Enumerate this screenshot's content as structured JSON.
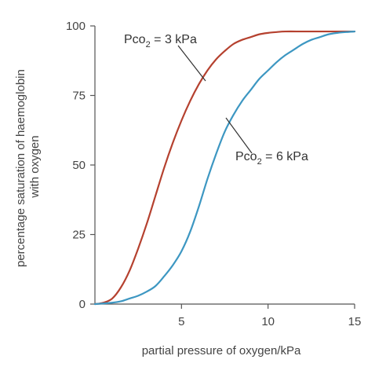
{
  "chart_data": {
    "type": "line",
    "title": "",
    "xlabel": "partial pressure of oxygen/kPa",
    "ylabel": [
      "percentage saturation of haemoglobin",
      "with oxygen"
    ],
    "xlim": [
      0,
      15
    ],
    "ylim": [
      0,
      100
    ],
    "x_ticks": [
      5,
      10,
      15
    ],
    "x_tick_labels": [
      "5",
      "10",
      "15"
    ],
    "y_ticks": [
      0,
      25,
      50,
      75,
      100
    ],
    "y_tick_labels": [
      "0",
      "25",
      "50",
      "75",
      "100"
    ],
    "grid": false,
    "legend": "none",
    "series": [
      {
        "label_main": "Pco",
        "label_sub": "2",
        "label_rest": " = 3 kPa",
        "color": "#b5412f",
        "x": [
          0,
          0.5,
          1,
          1.5,
          2,
          2.5,
          3,
          3.5,
          4,
          4.5,
          5,
          5.5,
          6,
          6.5,
          7,
          7.5,
          8,
          8.5,
          9,
          9.5,
          10,
          10.5,
          11,
          12,
          13,
          14,
          15
        ],
        "y": [
          0,
          0.5,
          2,
          6,
          12,
          20,
          29,
          39,
          49,
          58,
          66,
          73,
          79,
          84,
          88,
          91,
          93.5,
          95,
          96,
          97,
          97.5,
          97.8,
          98,
          98,
          98,
          98,
          98
        ]
      },
      {
        "label_main": "Pco",
        "label_sub": "2",
        "label_rest": " = 6 kPa",
        "color": "#3d97c2",
        "x": [
          0,
          1,
          1.5,
          2,
          2.5,
          3,
          3.5,
          4,
          4.5,
          5,
          5.5,
          6,
          6.5,
          7,
          7.5,
          8,
          8.5,
          9,
          9.5,
          10,
          10.5,
          11,
          11.5,
          12,
          12.5,
          13,
          13.5,
          14,
          14.5,
          15
        ],
        "y": [
          0,
          0.5,
          1,
          2,
          3,
          4.5,
          6.5,
          10,
          14,
          19,
          26,
          35,
          45,
          54,
          62,
          68,
          73,
          77,
          81,
          84,
          87,
          89.5,
          91.5,
          93.5,
          95,
          96,
          97,
          97.5,
          97.8,
          98
        ]
      }
    ],
    "annotations": [
      {
        "series": 0,
        "at": [
          5.2,
          80.5
        ]
      },
      {
        "series": 1,
        "at": [
          8.1,
          67.5
        ]
      }
    ]
  }
}
